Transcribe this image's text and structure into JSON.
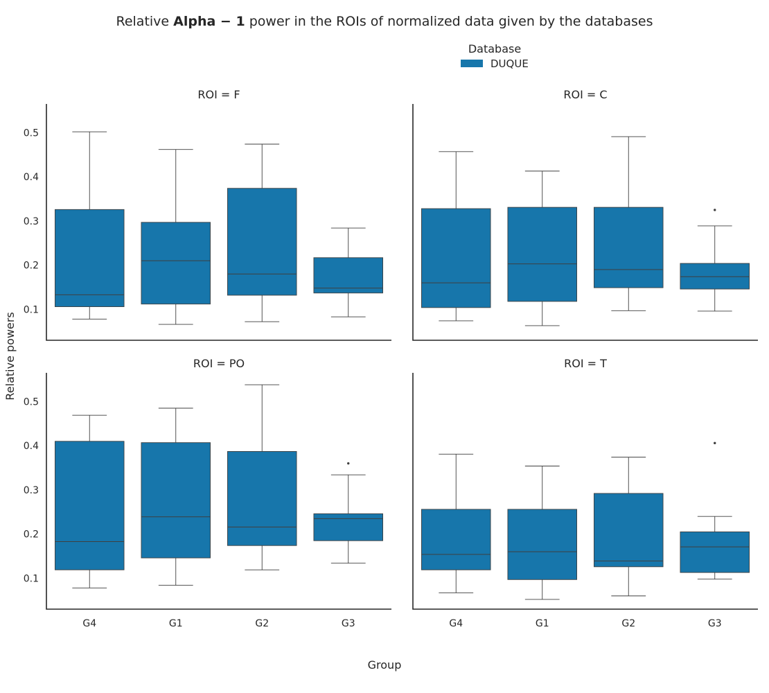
{
  "chart_data": {
    "type": "box",
    "title_parts": {
      "pre": "Relative ",
      "bold": "Alpha − 1",
      "post": " power in the ROIs of normalized data given by the databases"
    },
    "xlabel": "Group",
    "ylabel": "Relative powers",
    "categories": [
      "G4",
      "G1",
      "G2",
      "G3"
    ],
    "yticks": [
      0.1,
      0.2,
      0.3,
      0.4,
      0.5
    ],
    "ylim": [
      0.03,
      0.565
    ],
    "legend": {
      "title": "Database",
      "entries": [
        {
          "label": "DUQUE",
          "color": "#1776ab"
        }
      ],
      "placement": "top-center"
    },
    "panels": [
      {
        "title": "ROI = F",
        "boxes": [
          {
            "group": "G4",
            "whislo": 0.078,
            "q1": 0.106,
            "med": 0.133,
            "q3": 0.326,
            "whishi": 0.502,
            "fliers": []
          },
          {
            "group": "G1",
            "whislo": 0.066,
            "q1": 0.112,
            "med": 0.21,
            "q3": 0.297,
            "whishi": 0.462,
            "fliers": []
          },
          {
            "group": "G2",
            "whislo": 0.072,
            "q1": 0.132,
            "med": 0.18,
            "q3": 0.374,
            "whishi": 0.474,
            "fliers": []
          },
          {
            "group": "G3",
            "whislo": 0.083,
            "q1": 0.137,
            "med": 0.148,
            "q3": 0.217,
            "whishi": 0.284,
            "fliers": []
          }
        ]
      },
      {
        "title": "ROI = C",
        "boxes": [
          {
            "group": "G4",
            "whislo": 0.074,
            "q1": 0.104,
            "med": 0.16,
            "q3": 0.328,
            "whishi": 0.457,
            "fliers": []
          },
          {
            "group": "G1",
            "whislo": 0.063,
            "q1": 0.118,
            "med": 0.203,
            "q3": 0.331,
            "whishi": 0.413,
            "fliers": []
          },
          {
            "group": "G2",
            "whislo": 0.097,
            "q1": 0.149,
            "med": 0.19,
            "q3": 0.331,
            "whishi": 0.491,
            "fliers": []
          },
          {
            "group": "G3",
            "whislo": 0.096,
            "q1": 0.146,
            "med": 0.174,
            "q3": 0.204,
            "whishi": 0.289,
            "fliers": [
              0.325
            ]
          }
        ]
      },
      {
        "title": "ROI = PO",
        "boxes": [
          {
            "group": "G4",
            "whislo": 0.078,
            "q1": 0.119,
            "med": 0.183,
            "q3": 0.41,
            "whishi": 0.469,
            "fliers": []
          },
          {
            "group": "G1",
            "whislo": 0.084,
            "q1": 0.146,
            "med": 0.239,
            "q3": 0.407,
            "whishi": 0.485,
            "fliers": []
          },
          {
            "group": "G2",
            "whislo": 0.119,
            "q1": 0.174,
            "med": 0.216,
            "q3": 0.387,
            "whishi": 0.538,
            "fliers": []
          },
          {
            "group": "G3",
            "whislo": 0.134,
            "q1": 0.185,
            "med": 0.235,
            "q3": 0.246,
            "whishi": 0.334,
            "fliers": [
              0.36
            ]
          }
        ]
      },
      {
        "title": "ROI = T",
        "boxes": [
          {
            "group": "G4",
            "whislo": 0.067,
            "q1": 0.119,
            "med": 0.154,
            "q3": 0.256,
            "whishi": 0.381,
            "fliers": []
          },
          {
            "group": "G1",
            "whislo": 0.052,
            "q1": 0.097,
            "med": 0.16,
            "q3": 0.256,
            "whishi": 0.354,
            "fliers": []
          },
          {
            "group": "G2",
            "whislo": 0.06,
            "q1": 0.126,
            "med": 0.139,
            "q3": 0.292,
            "whishi": 0.374,
            "fliers": []
          },
          {
            "group": "G3",
            "whislo": 0.098,
            "q1": 0.113,
            "med": 0.171,
            "q3": 0.205,
            "whishi": 0.24,
            "fliers": [
              0.406
            ]
          }
        ]
      }
    ]
  }
}
